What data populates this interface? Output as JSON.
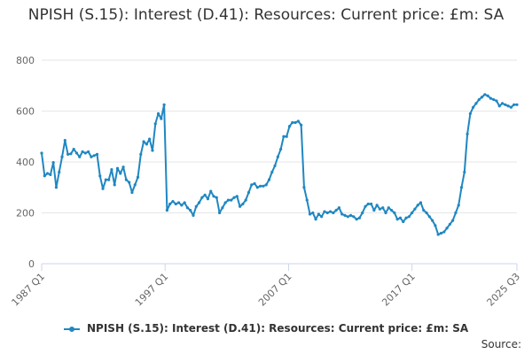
{
  "colors": {
    "series": "#1f87c2",
    "grid": "#e6e6e6",
    "axis": "#ccd6eb"
  },
  "footer": {
    "source_label": "Source:"
  },
  "chart_data": {
    "type": "line",
    "title": "NPISH (S.15): Interest (D.41): Resources: Current price: £m: SA",
    "xlabel": "",
    "ylabel": "",
    "ylim": [
      0,
      800
    ],
    "yticks": [
      0,
      200,
      400,
      600,
      800
    ],
    "xticks": [
      "1987 Q1",
      "1997 Q1",
      "2007 Q1",
      "2017 Q1",
      "2025 Q3"
    ],
    "grid": true,
    "legend_position": "bottom",
    "start_period": "1987 Q1",
    "end_period": "2025 Q3",
    "series": [
      {
        "name": "NPISH (S.15): Interest (D.41): Resources: Current price: £m: SA",
        "values": [
          435,
          345,
          355,
          350,
          398,
          300,
          360,
          420,
          485,
          430,
          432,
          450,
          435,
          420,
          440,
          435,
          440,
          420,
          425,
          430,
          345,
          295,
          330,
          330,
          370,
          310,
          375,
          355,
          380,
          330,
          320,
          280,
          310,
          340,
          430,
          480,
          470,
          490,
          445,
          550,
          590,
          570,
          625,
          210,
          235,
          245,
          235,
          240,
          230,
          240,
          220,
          210,
          190,
          225,
          240,
          260,
          270,
          255,
          285,
          265,
          260,
          200,
          220,
          240,
          250,
          250,
          260,
          265,
          225,
          235,
          250,
          280,
          310,
          315,
          300,
          305,
          305,
          310,
          330,
          360,
          385,
          420,
          450,
          500,
          500,
          540,
          555,
          555,
          560,
          545,
          300,
          250,
          195,
          200,
          175,
          195,
          185,
          205,
          200,
          205,
          200,
          210,
          220,
          195,
          190,
          185,
          190,
          185,
          175,
          180,
          200,
          225,
          235,
          235,
          210,
          230,
          215,
          220,
          200,
          220,
          210,
          200,
          175,
          180,
          165,
          180,
          185,
          200,
          215,
          230,
          240,
          210,
          200,
          185,
          170,
          150,
          115,
          120,
          125,
          140,
          155,
          170,
          200,
          230,
          300,
          360,
          510,
          590,
          615,
          630,
          645,
          655,
          665,
          660,
          650,
          645,
          640,
          620,
          630,
          625,
          620,
          615,
          625,
          625
        ]
      }
    ]
  }
}
